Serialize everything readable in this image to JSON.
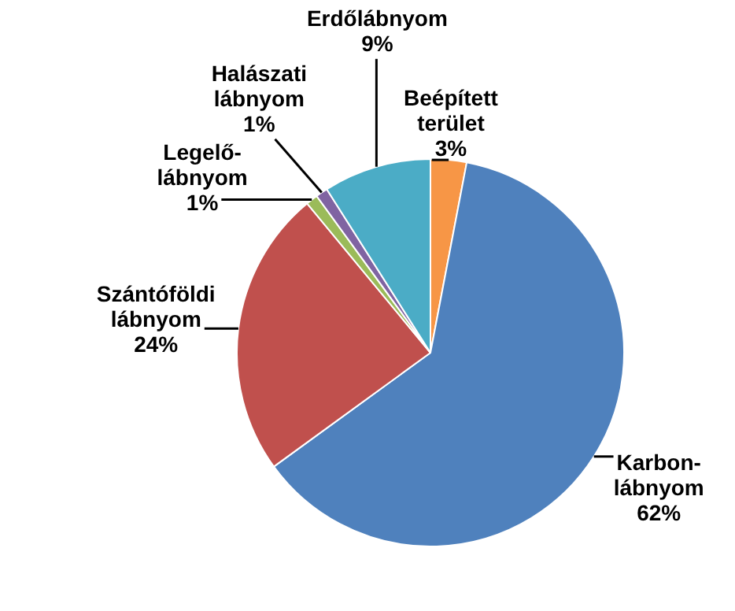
{
  "chart_data": {
    "type": "pie",
    "categories": [
      "Beépített terület",
      "Karbon-lábnyom",
      "Szántóföldi lábnyom",
      "Legelő-lábnyom",
      "Halászati lábnyom",
      "Erdőlábnyom"
    ],
    "values": [
      3,
      62,
      24,
      1,
      1,
      9
    ],
    "value_labels": [
      "3%",
      "62%",
      "24%",
      "1%",
      "1%",
      "9%"
    ],
    "colors": [
      "#f79646",
      "#4f81bd",
      "#c0504d",
      "#9bbb59",
      "#8064a2",
      "#4bacc6"
    ],
    "legend": false
  }
}
